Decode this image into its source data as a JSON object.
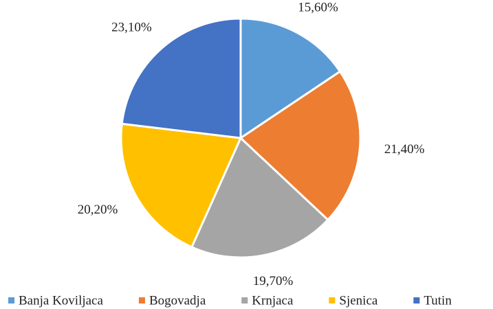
{
  "chart_data": {
    "type": "pie",
    "categories": [
      "Banja Koviljaca",
      "Bogovadja",
      "Krnjaca",
      "Sjenica",
      "Tutin"
    ],
    "values": [
      15.6,
      21.4,
      19.7,
      20.2,
      23.1
    ],
    "value_labels": [
      "15,60%",
      "21,40%",
      "19,70%",
      "20,20%",
      "23,10%"
    ],
    "colors": [
      "#5b9bd5",
      "#ed7d31",
      "#a5a5a5",
      "#ffc000",
      "#4472c4"
    ],
    "legend": "bottom"
  }
}
